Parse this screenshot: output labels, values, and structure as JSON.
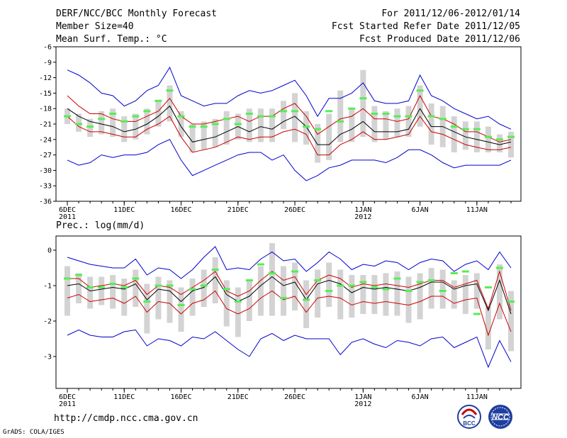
{
  "header": {
    "title": "DERF/NCC/BCC Monthly Forecast",
    "member_size": "Member Size=40",
    "variable": "Mean Surf. Temp.: °C",
    "period": "For 2011/12/06-2012/01/14",
    "started": "Fcst Started Refer Date 2011/12/05",
    "produced": "Fcst Produced Date 2011/12/06"
  },
  "footer": {
    "url": "http://cmdp.ncc.cma.gov.cn",
    "grads": "GrADS: COLA/IGES",
    "logo_bcc": "BCC",
    "logo_ncc": "NCC"
  },
  "colors": {
    "ensemble_range": "#0000cc",
    "spread": "#cc0000",
    "mean": "#000000",
    "box": "#d3d3d3",
    "marker": "#55ee55"
  },
  "chart_data": [
    {
      "type": "line",
      "title": "Mean Surf. Temp.: °C",
      "xlabel": "",
      "ylabel": "",
      "x_start": "2011-12-06",
      "days": 40,
      "xticks": [
        {
          "day": 0,
          "label": "6DEC",
          "sub": "2011"
        },
        {
          "day": 5,
          "label": "11DEC"
        },
        {
          "day": 10,
          "label": "16DEC"
        },
        {
          "day": 15,
          "label": "21DEC"
        },
        {
          "day": 20,
          "label": "26DEC"
        },
        {
          "day": 26,
          "label": "1JAN",
          "sub": "2012"
        },
        {
          "day": 31,
          "label": "6JAN"
        },
        {
          "day": 36,
          "label": "11JAN"
        }
      ],
      "ylim": [
        -36,
        -6
      ],
      "yticks": [
        -6,
        -9,
        -12,
        -15,
        -18,
        -21,
        -24,
        -27,
        -30,
        -33,
        -36
      ],
      "series": [
        {
          "name": "max",
          "values": [
            -10.5,
            -11.5,
            -13,
            -15,
            -15.5,
            -17.5,
            -16.5,
            -14.5,
            -13.5,
            -10,
            -15.5,
            -16.5,
            -17.5,
            -17,
            -17,
            -15.5,
            -14.5,
            -15,
            -14.5,
            -13.5,
            -12.5,
            -15.5,
            -19.5,
            -16,
            -16,
            -15,
            -13,
            -16.5,
            -17,
            -17,
            -16.5,
            -11.5,
            -15.5,
            -16.5,
            -18,
            -19,
            -20,
            -19.5,
            -21,
            -22
          ]
        },
        {
          "name": "upper",
          "values": [
            -15.5,
            -17.5,
            -19,
            -19,
            -20,
            -20.5,
            -20.5,
            -19.5,
            -18.5,
            -16,
            -19.5,
            -21,
            -21,
            -20.5,
            -20,
            -19.5,
            -20.5,
            -19.5,
            -19.5,
            -18,
            -17,
            -19.5,
            -23,
            -21.5,
            -20,
            -19.5,
            -18,
            -20,
            -20,
            -20.5,
            -20,
            -15.5,
            -19.5,
            -20,
            -21,
            -22.5,
            -22.5,
            -23.5,
            -24.5,
            -24
          ]
        },
        {
          "name": "mean",
          "values": [
            -18,
            -19.5,
            -20.5,
            -21,
            -21.5,
            -22.5,
            -22,
            -21,
            -19.5,
            -17.5,
            -21.5,
            -24.5,
            -24,
            -23.5,
            -22.5,
            -21.5,
            -22.5,
            -21.5,
            -22,
            -20.5,
            -19.5,
            -21.5,
            -25,
            -25,
            -23,
            -22,
            -20.5,
            -22.5,
            -22.5,
            -22.5,
            -22,
            -18,
            -21.5,
            -21.5,
            -22.5,
            -23.5,
            -24,
            -24.5,
            -25,
            -24.5
          ]
        },
        {
          "name": "lower",
          "values": [
            -19.5,
            -21.5,
            -22.5,
            -22.5,
            -23,
            -23.5,
            -23.5,
            -22,
            -21,
            -19.5,
            -23.5,
            -26.5,
            -26,
            -25.5,
            -24.5,
            -23.5,
            -24,
            -23.5,
            -23.5,
            -22.5,
            -22,
            -23,
            -27,
            -27,
            -25,
            -24,
            -22.5,
            -24,
            -24,
            -23.5,
            -23,
            -19.5,
            -22.5,
            -23,
            -24,
            -25,
            -25.5,
            -26,
            -26,
            -25.5
          ]
        },
        {
          "name": "min",
          "values": [
            -28,
            -29,
            -28.5,
            -27,
            -27.5,
            -27,
            -27,
            -26.5,
            -25,
            -24,
            -28,
            -31,
            -30,
            -29,
            -28,
            -27,
            -26.5,
            -26.5,
            -28,
            -27,
            -30,
            -32,
            -31,
            -29.5,
            -29,
            -28,
            -28,
            -28,
            -28.5,
            -27.5,
            -26,
            -26,
            -27,
            -28.5,
            -29.5,
            -29,
            -29,
            -29,
            -29,
            -28
          ]
        },
        {
          "name": "marker",
          "values": [
            -19.5,
            -21,
            -21.5,
            -20,
            -19,
            -20.5,
            -19.5,
            -18.5,
            -16.5,
            -14.5,
            -19.5,
            -21.5,
            -21.5,
            -21,
            -20,
            -21,
            -19,
            -19.5,
            -19.5,
            -18.5,
            -18.5,
            -21.5,
            -22,
            -18.5,
            -20.5,
            -18,
            -16,
            -19,
            -19,
            -19.5,
            -19.5,
            -14.5,
            -19.5,
            -20,
            -21.5,
            -22,
            -22,
            -23.5,
            -24,
            -23.5
          ]
        },
        {
          "name": "box_top",
          "values": [
            -18,
            -19,
            -20,
            -18.5,
            -18,
            -19.5,
            -19,
            -18,
            -16.5,
            -13.5,
            -18.5,
            -21,
            -20.5,
            -20,
            -18.5,
            -19,
            -18,
            -18,
            -18,
            -16.5,
            -15,
            -18.5,
            -21,
            -19,
            -14.5,
            -18,
            -10.5,
            -17.5,
            -18.5,
            -18,
            -17.5,
            -13.5,
            -17,
            -17.5,
            -19.5,
            -20.5,
            -20.5,
            -21.5,
            -23,
            -22.5
          ]
        },
        {
          "name": "box_bottom",
          "values": [
            -21,
            -22.5,
            -23.5,
            -23,
            -23.5,
            -24.5,
            -24,
            -23,
            -21.5,
            -20.5,
            -23.5,
            -26.5,
            -26,
            -25.5,
            -25,
            -24,
            -24.5,
            -24.5,
            -24.5,
            -22,
            -24.5,
            -25,
            -28.5,
            -28,
            -24.5,
            -24.5,
            -23.5,
            -24.5,
            -24,
            -23.5,
            -23.5,
            -21.5,
            -25,
            -25.5,
            -26.5,
            -26,
            -26.5,
            -26.5,
            -26.5,
            -27.5
          ]
        }
      ]
    },
    {
      "type": "line",
      "title": "Prec.: log(mm/d)",
      "xlabel": "",
      "ylabel": "",
      "x_start": "2011-12-06",
      "days": 40,
      "xticks": [
        {
          "day": 0,
          "label": "6DEC",
          "sub": "2011"
        },
        {
          "day": 5,
          "label": "11DEC"
        },
        {
          "day": 10,
          "label": "16DEC"
        },
        {
          "day": 15,
          "label": "21DEC"
        },
        {
          "day": 20,
          "label": "26DEC"
        },
        {
          "day": 26,
          "label": "1JAN",
          "sub": "2012"
        },
        {
          "day": 31,
          "label": "6JAN"
        },
        {
          "day": 36,
          "label": "11JAN"
        }
      ],
      "ylim": [
        -3.9,
        0.4
      ],
      "yticks": [
        0,
        -1,
        -2,
        -3
      ],
      "series": [
        {
          "name": "max",
          "values": [
            -0.2,
            -0.3,
            -0.4,
            -0.45,
            -0.5,
            -0.5,
            -0.25,
            -0.7,
            -0.5,
            -0.55,
            -0.8,
            -0.55,
            -0.2,
            0.1,
            -0.55,
            -0.5,
            -0.55,
            -0.25,
            -0.05,
            -0.3,
            -0.25,
            -0.6,
            -0.35,
            -0.05,
            -0.25,
            -0.55,
            -0.4,
            -0.45,
            -0.3,
            -0.35,
            -0.55,
            -0.35,
            -0.25,
            -0.3,
            -0.6,
            -0.4,
            -0.3,
            -0.55,
            -0.05,
            -0.5
          ]
        },
        {
          "name": "upper",
          "values": [
            -0.8,
            -0.8,
            -1.05,
            -1.0,
            -0.95,
            -1.0,
            -0.85,
            -1.25,
            -1.0,
            -1.05,
            -1.25,
            -1.05,
            -0.85,
            -0.6,
            -1.15,
            -1.3,
            -1.15,
            -0.85,
            -0.6,
            -0.85,
            -0.75,
            -1.25,
            -0.85,
            -0.7,
            -0.8,
            -1.05,
            -0.95,
            -1.0,
            -0.95,
            -1.0,
            -1.05,
            -0.95,
            -0.85,
            -0.85,
            -1.05,
            -0.95,
            -0.85,
            -1.65,
            -0.6,
            -1.7
          ]
        },
        {
          "name": "mean",
          "values": [
            -1.0,
            -0.95,
            -1.15,
            -1.1,
            -1.05,
            -1.1,
            -0.95,
            -1.4,
            -1.1,
            -1.15,
            -1.45,
            -1.15,
            -1.05,
            -0.75,
            -1.25,
            -1.45,
            -1.3,
            -1.0,
            -0.75,
            -1.0,
            -0.9,
            -1.4,
            -0.95,
            -0.85,
            -0.95,
            -1.2,
            -1.05,
            -1.1,
            -1.05,
            -1.1,
            -1.15,
            -1.05,
            -0.9,
            -0.9,
            -1.1,
            -1.0,
            -0.95,
            -1.7,
            -0.85,
            -1.8
          ]
        },
        {
          "name": "lower",
          "values": [
            -1.35,
            -1.25,
            -1.45,
            -1.4,
            -1.35,
            -1.5,
            -1.3,
            -1.75,
            -1.45,
            -1.5,
            -1.8,
            -1.5,
            -1.4,
            -1.15,
            -1.65,
            -1.8,
            -1.65,
            -1.35,
            -1.15,
            -1.4,
            -1.3,
            -1.75,
            -1.35,
            -1.3,
            -1.35,
            -1.55,
            -1.45,
            -1.5,
            -1.45,
            -1.5,
            -1.55,
            -1.45,
            -1.3,
            -1.3,
            -1.5,
            -1.4,
            -1.35,
            -2.4,
            -1.5,
            -2.3
          ]
        },
        {
          "name": "min",
          "values": [
            -2.4,
            -2.25,
            -2.4,
            -2.45,
            -2.45,
            -2.3,
            -2.25,
            -2.7,
            -2.5,
            -2.55,
            -2.7,
            -2.45,
            -2.5,
            -2.3,
            -2.55,
            -2.8,
            -3.0,
            -2.5,
            -2.35,
            -2.55,
            -2.4,
            -2.5,
            -2.5,
            -2.5,
            -2.95,
            -2.6,
            -2.5,
            -2.65,
            -2.75,
            -2.55,
            -2.6,
            -2.7,
            -2.5,
            -2.45,
            -2.75,
            -2.6,
            -2.45,
            -3.3,
            -2.55,
            -3.15
          ]
        },
        {
          "name": "marker",
          "values": [
            -0.8,
            -0.7,
            -1.05,
            -1.05,
            -0.95,
            -1.05,
            -0.8,
            -1.45,
            -1.0,
            -1.0,
            -1.55,
            -1.1,
            -1.0,
            -0.55,
            -1.1,
            -1.45,
            -0.85,
            -0.4,
            -0.65,
            -1.35,
            -0.6,
            -1.4,
            -0.85,
            -1.15,
            -1.0,
            -1.0,
            -0.9,
            -1.05,
            -1.1,
            -0.8,
            -1.15,
            -0.9,
            -0.85,
            -1.15,
            -0.65,
            -0.6,
            -1.8,
            -1.05,
            -0.5,
            -1.45
          ]
        },
        {
          "name": "box_top",
          "values": [
            -0.45,
            -0.65,
            -0.75,
            -0.75,
            -0.7,
            -0.8,
            -0.55,
            -0.95,
            -0.75,
            -0.85,
            -1.05,
            -0.8,
            -0.55,
            -0.2,
            -0.85,
            -1.05,
            -0.85,
            -0.45,
            0.2,
            -0.45,
            -0.35,
            -0.85,
            -0.55,
            -0.35,
            -0.55,
            -0.7,
            -0.7,
            -0.7,
            -0.65,
            -0.6,
            -0.75,
            -0.65,
            -0.5,
            -0.55,
            -0.85,
            -0.7,
            -0.65,
            -1.6,
            -0.4,
            -1.15
          ]
        },
        {
          "name": "box_bottom",
          "values": [
            -1.85,
            -1.5,
            -1.65,
            -1.55,
            -1.65,
            -1.85,
            -1.6,
            -2.35,
            -1.95,
            -2.05,
            -2.3,
            -1.85,
            -1.6,
            -1.5,
            -2.15,
            -2.45,
            -2.0,
            -1.85,
            -1.85,
            -1.85,
            -1.7,
            -2.2,
            -1.9,
            -1.6,
            -1.95,
            -1.9,
            -1.8,
            -1.8,
            -1.85,
            -1.85,
            -2.05,
            -1.95,
            -1.65,
            -1.65,
            -1.65,
            -1.8,
            -1.65,
            -2.8,
            -1.95,
            -2.85
          ]
        }
      ]
    }
  ]
}
